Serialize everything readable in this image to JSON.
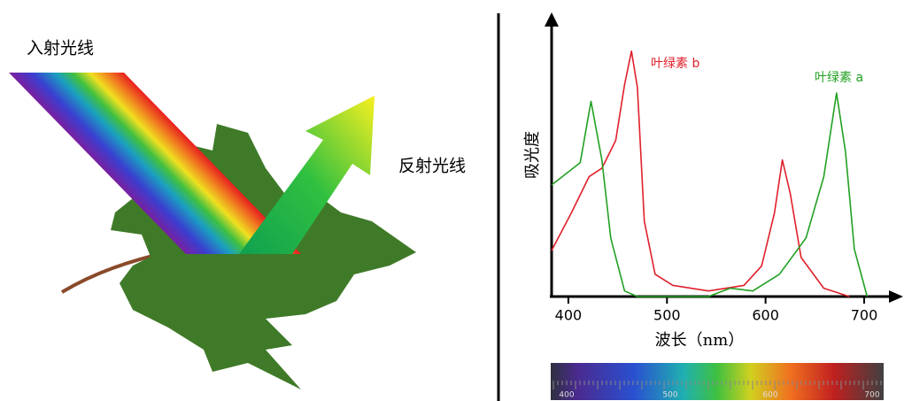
{
  "diagram": {
    "incident_label": "入射光线",
    "reflected_label": "反射光线"
  },
  "chart_data": {
    "type": "line",
    "xlabel": "波长（nm）",
    "ylabel": "吸光度",
    "xlim": [
      383,
      735
    ],
    "xticks": [
      400,
      500,
      600,
      700
    ],
    "ylim": [
      0,
      100
    ],
    "series": [
      {
        "name": "叶绿素 b",
        "color": "#e0202a",
        "x": [
          383,
          403,
          421,
          434,
          448,
          457,
          464,
          470,
          477,
          488,
          506,
          542,
          578,
          596,
          609,
          617,
          625,
          636,
          659,
          685
        ],
        "values": [
          16.5,
          30,
          43,
          46,
          56,
          76,
          88,
          75,
          27,
          8,
          4,
          2,
          4,
          11,
          30,
          49,
          37,
          14,
          3,
          0
        ]
      },
      {
        "name": "叶绿素 a",
        "color": "#22a022",
        "x": [
          383,
          412,
          423,
          434,
          443,
          457,
          470,
          542,
          564,
          587,
          614,
          641,
          659,
          672,
          681,
          690,
          703
        ],
        "values": [
          40,
          48,
          70,
          49,
          21,
          2,
          0,
          0,
          3,
          2,
          8,
          21,
          43,
          73,
          52,
          17,
          0
        ]
      }
    ]
  },
  "spectrum_bar": {
    "labels": [
      "400",
      "500",
      "600",
      "700"
    ]
  }
}
